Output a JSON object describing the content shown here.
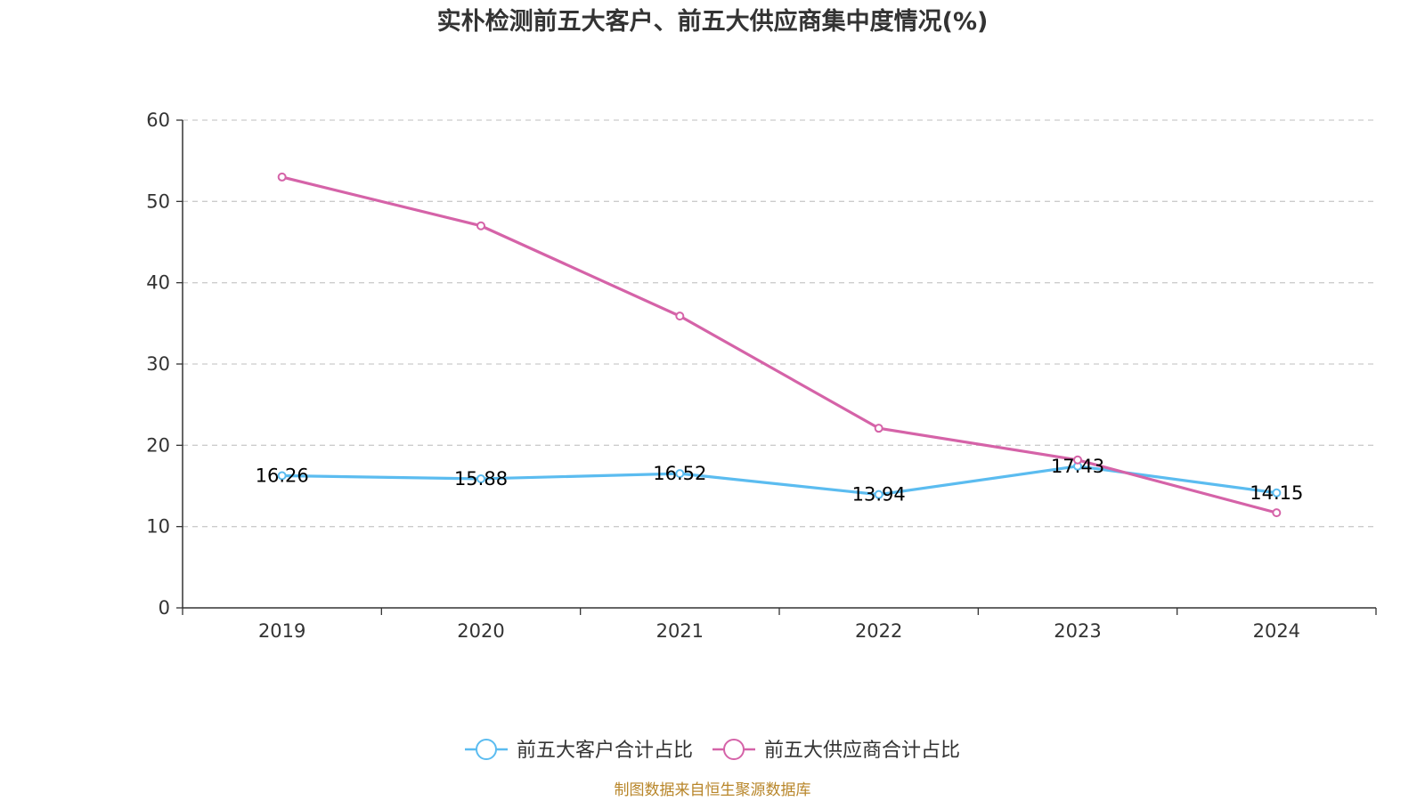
{
  "chart_data": {
    "type": "line",
    "title": "实朴检测前五大客户、前五大供应商集中度情况(%)",
    "categories": [
      "2019",
      "2020",
      "2021",
      "2022",
      "2023",
      "2024"
    ],
    "yticks": [
      "0",
      "10",
      "20",
      "30",
      "40",
      "50",
      "60"
    ],
    "ylim": [
      0,
      60
    ],
    "grid": true,
    "legend_position": "bottom",
    "series": [
      {
        "name": "前五大客户合计占比",
        "color": "#5bbcf0",
        "values": [
          16.26,
          15.88,
          16.52,
          13.94,
          17.43,
          14.15
        ],
        "labels": [
          "16.26",
          "15.88",
          "16.52",
          "13.94",
          "17.43",
          "14.15"
        ]
      },
      {
        "name": "前五大供应商合计占比",
        "color": "#d563a8",
        "values": [
          53.0,
          47.0,
          35.9,
          22.1,
          18.2,
          11.7
        ],
        "labels": []
      }
    ],
    "source": "制图数据来自恒生聚源数据库"
  }
}
